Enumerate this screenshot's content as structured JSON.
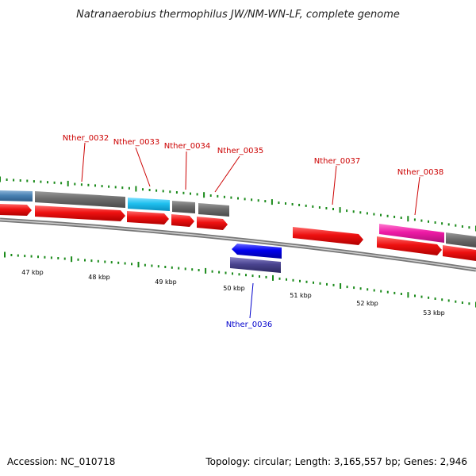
{
  "title": "Natranaerobius thermophilus JW/NM-WN-LF, complete genome",
  "footer": {
    "accession": "Accession: NC_010718",
    "summary": "Topology: circular; Length: 3,165,557 bp; Genes: 2,946"
  },
  "colors": {
    "cds_forward": "#ee1111",
    "gene_grey": "#6c6c6c",
    "gene_cyan": "#20c0ee",
    "gene_magenta": "#ee1aa5",
    "gene_steelblue": "#4a82b4",
    "cds_reverse": "#0000ee",
    "gene_reverse_track": "#4a4490",
    "tick_green": "#1a8a1a",
    "backbone": "#888888"
  },
  "kbp_labels": [
    "47 kbp",
    "48 kbp",
    "49 kbp",
    "50 kbp",
    "51 kbp",
    "52 kbp",
    "53 kbp"
  ],
  "gene_labels": [
    {
      "name": "Nther_0032",
      "strand": "forward"
    },
    {
      "name": "Nther_0033",
      "strand": "forward"
    },
    {
      "name": "Nther_0034",
      "strand": "forward"
    },
    {
      "name": "Nther_0035",
      "strand": "forward"
    },
    {
      "name": "Nther_0036",
      "strand": "reverse"
    },
    {
      "name": "Nther_0037",
      "strand": "forward"
    },
    {
      "name": "Nther_0038",
      "strand": "forward"
    }
  ]
}
